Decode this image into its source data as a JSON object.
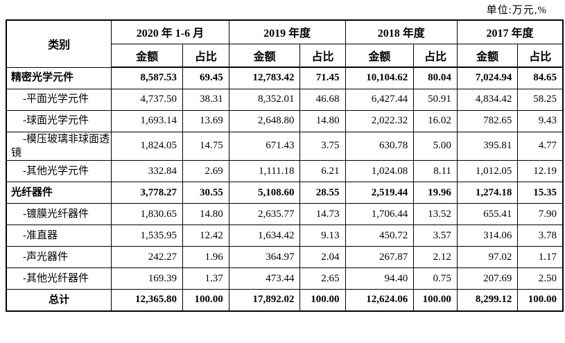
{
  "unit_note": "单位:万元,%",
  "table": {
    "category_header": "类别",
    "periods": [
      {
        "label": "2020 年 1-6 月",
        "amount_label": "金额",
        "ratio_label": "占比"
      },
      {
        "label": "2019 年度",
        "amount_label": "金额",
        "ratio_label": "占比"
      },
      {
        "label": "2018 年度",
        "amount_label": "金额",
        "ratio_label": "占比"
      },
      {
        "label": "2017 年度",
        "amount_label": "金额",
        "ratio_label": "占比"
      }
    ],
    "rows": [
      {
        "label": "精密光学元件",
        "style": "group",
        "values": [
          "8,587.53",
          "69.45",
          "12,783.42",
          "71.45",
          "10,104.62",
          "80.04",
          "7,024.94",
          "84.65"
        ]
      },
      {
        "label": "-平面光学元件",
        "style": "sub",
        "values": [
          "4,737.50",
          "38.31",
          "8,352.01",
          "46.68",
          "6,427.44",
          "50.91",
          "4,834.42",
          "58.25"
        ]
      },
      {
        "label": "-球面光学元件",
        "style": "sub",
        "values": [
          "1,693.14",
          "13.69",
          "2,648.80",
          "14.80",
          "2,022.32",
          "16.02",
          "782.65",
          "9.43"
        ]
      },
      {
        "label": "-模压玻璃非球面透镜",
        "style": "sub",
        "values": [
          "1,824.05",
          "14.75",
          "671.43",
          "3.75",
          "630.78",
          "5.00",
          "395.81",
          "4.77"
        ]
      },
      {
        "label": "-其他光学元件",
        "style": "sub",
        "values": [
          "332.84",
          "2.69",
          "1,111.18",
          "6.21",
          "1,024.08",
          "8.11",
          "1,012.05",
          "12.19"
        ]
      },
      {
        "label": "光纤器件",
        "style": "group",
        "values": [
          "3,778.27",
          "30.55",
          "5,108.60",
          "28.55",
          "2,519.44",
          "19.96",
          "1,274.18",
          "15.35"
        ]
      },
      {
        "label": "-镀膜光纤器件",
        "style": "sub",
        "values": [
          "1,830.65",
          "14.80",
          "2,635.77",
          "14.73",
          "1,706.44",
          "13.52",
          "655.41",
          "7.90"
        ]
      },
      {
        "label": "-准直器",
        "style": "sub",
        "values": [
          "1,535.95",
          "12.42",
          "1,634.42",
          "9.13",
          "450.72",
          "3.57",
          "314.06",
          "3.78"
        ]
      },
      {
        "label": "-声光器件",
        "style": "sub",
        "values": [
          "242.27",
          "1.96",
          "364.97",
          "2.04",
          "267.87",
          "2.12",
          "97.02",
          "1.17"
        ]
      },
      {
        "label": "-其他光纤器件",
        "style": "sub",
        "values": [
          "169.39",
          "1.37",
          "473.44",
          "2.65",
          "94.40",
          "0.75",
          "207.69",
          "2.50"
        ]
      },
      {
        "label": "总计",
        "style": "total",
        "values": [
          "12,365.80",
          "100.00",
          "17,892.02",
          "100.00",
          "12,624.06",
          "100.00",
          "8,299.12",
          "100.00"
        ]
      }
    ]
  }
}
